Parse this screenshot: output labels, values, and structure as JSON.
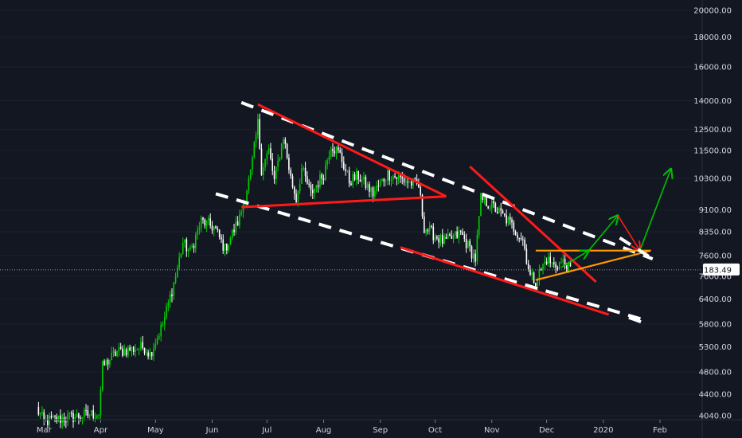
{
  "chart_data": {
    "type": "candlestick",
    "title": "",
    "xlabel": "",
    "ylabel": "",
    "y_scale": "log",
    "ylim": [
      4040,
      21000
    ],
    "y_ticks": [
      4040,
      4400,
      4800,
      5300,
      5800,
      6400,
      7000,
      7600,
      8350,
      9100,
      10300,
      11500,
      12500,
      14000,
      16000,
      18000,
      20000
    ],
    "y_tick_labels": [
      "4040.00",
      "4400.00",
      "4800.00",
      "5300.00",
      "5800.00",
      "6400.00",
      "7000.00",
      "7600.00",
      "8350.00",
      "9100.00",
      "10300.00",
      "11500.00",
      "12500.00",
      "14000.00",
      "16000.00",
      "18000.00",
      "20000.00"
    ],
    "x_ticks": [
      "Mar",
      "Apr",
      "May",
      "Jun",
      "Jul",
      "Aug",
      "Sep",
      "Oct",
      "Nov",
      "Dec",
      "2020",
      "Feb"
    ],
    "x_range_dates": [
      "2019-02-18",
      "2020-02-18"
    ],
    "last_price": 7183.49,
    "last_price_label": "7183.49",
    "up_color": "#00d000",
    "down_color": "#ffffff",
    "price_path": [
      [
        "2019-02-25",
        4150
      ],
      [
        "2019-03-01",
        3950
      ],
      [
        "2019-03-31",
        4080
      ],
      [
        "2019-04-02",
        4900
      ],
      [
        "2019-04-10",
        5200
      ],
      [
        "2019-04-25",
        5300
      ],
      [
        "2019-04-28",
        5150
      ],
      [
        "2019-05-05",
        5800
      ],
      [
        "2019-05-12",
        7000
      ],
      [
        "2019-05-16",
        8000
      ],
      [
        "2019-05-20",
        7700
      ],
      [
        "2019-05-26",
        8700
      ],
      [
        "2019-06-02",
        8500
      ],
      [
        "2019-06-08",
        7800
      ],
      [
        "2019-06-16",
        8800
      ],
      [
        "2019-06-22",
        10500
      ],
      [
        "2019-06-26",
        12800
      ],
      [
        "2019-06-28",
        10700
      ],
      [
        "2019-07-02",
        11500
      ],
      [
        "2019-07-05",
        10200
      ],
      [
        "2019-07-10",
        12200
      ],
      [
        "2019-07-14",
        10300
      ],
      [
        "2019-07-17",
        9500
      ],
      [
        "2019-07-20",
        10700
      ],
      [
        "2019-07-25",
        9700
      ],
      [
        "2019-08-01",
        10500
      ],
      [
        "2019-08-05",
        11800
      ],
      [
        "2019-08-10",
        11300
      ],
      [
        "2019-08-15",
        10200
      ],
      [
        "2019-08-20",
        10400
      ],
      [
        "2019-08-28",
        9700
      ],
      [
        "2019-09-05",
        10500
      ],
      [
        "2019-09-15",
        10200
      ],
      [
        "2019-09-22",
        10000
      ],
      [
        "2019-09-25",
        8500
      ],
      [
        "2019-10-06",
        8000
      ],
      [
        "2019-10-15",
        8300
      ],
      [
        "2019-10-23",
        7500
      ],
      [
        "2019-10-26",
        9500
      ],
      [
        "2019-11-02",
        9200
      ],
      [
        "2019-11-10",
        8700
      ],
      [
        "2019-11-18",
        8100
      ],
      [
        "2019-11-22",
        7000
      ],
      [
        "2019-11-25",
        6900
      ],
      [
        "2019-12-01",
        7500
      ],
      [
        "2019-12-05",
        7300
      ],
      [
        "2019-12-10",
        7400
      ],
      [
        "2019-12-14",
        7183
      ]
    ],
    "annotations": [
      {
        "type": "dashed-trendline",
        "color": "#ffffff",
        "points": [
          [
            "2019-06-17",
            13900
          ],
          [
            "2020-01-28",
            7500
          ]
        ]
      },
      {
        "type": "dashed-trendline",
        "color": "#ffffff",
        "points": [
          [
            "2019-06-03",
            9700
          ],
          [
            "2020-01-23",
            5900
          ]
        ]
      },
      {
        "type": "trendline",
        "color": "#ff1a1a",
        "points": [
          [
            "2019-06-26",
            13800
          ],
          [
            "2019-10-07",
            9600
          ]
        ]
      },
      {
        "type": "trendline",
        "color": "#ff1a1a",
        "points": [
          [
            "2019-06-17",
            9200
          ],
          [
            "2019-10-07",
            9600
          ]
        ]
      },
      {
        "type": "trendline",
        "color": "#ff1a1a",
        "points": [
          [
            "2019-10-20",
            10800
          ],
          [
            "2019-12-28",
            6850
          ]
        ]
      },
      {
        "type": "trendline",
        "color": "#ff1a1a",
        "points": [
          [
            "2019-09-12",
            7850
          ],
          [
            "2020-01-04",
            6020
          ]
        ]
      },
      {
        "type": "trendline",
        "color": "#ff9800",
        "points": [
          [
            "2019-11-25",
            7750
          ],
          [
            "2020-01-27",
            7750
          ]
        ]
      },
      {
        "type": "trendline",
        "color": "#ff9800",
        "points": [
          [
            "2019-11-25",
            6900
          ],
          [
            "2020-01-27",
            7750
          ]
        ]
      },
      {
        "type": "arrow",
        "color": "#00c000",
        "points": [
          [
            "2019-12-09",
            7250
          ],
          [
            "2019-12-24",
            7750
          ]
        ]
      },
      {
        "type": "arrow",
        "color": "#00c000",
        "points": [
          [
            "2019-12-24",
            7750
          ],
          [
            "2020-01-09",
            8900
          ]
        ]
      },
      {
        "type": "arrow",
        "color": "#ff1a1a",
        "points": [
          [
            "2020-01-09",
            8900
          ],
          [
            "2020-01-21",
            7750
          ]
        ]
      },
      {
        "type": "arrow",
        "color": "#00c000",
        "points": [
          [
            "2020-01-21",
            7750
          ],
          [
            "2020-02-07",
            10700
          ]
        ]
      },
      {
        "type": "dashed-line",
        "color": "#ffffff",
        "points": [
          [
            "2020-01-15",
            5950
          ],
          [
            "2020-01-25",
            5800
          ]
        ]
      },
      {
        "type": "dashed-line",
        "color": "#ffffff",
        "points": [
          [
            "2020-01-10",
            8150
          ],
          [
            "2020-01-28",
            7500
          ]
        ]
      }
    ]
  }
}
